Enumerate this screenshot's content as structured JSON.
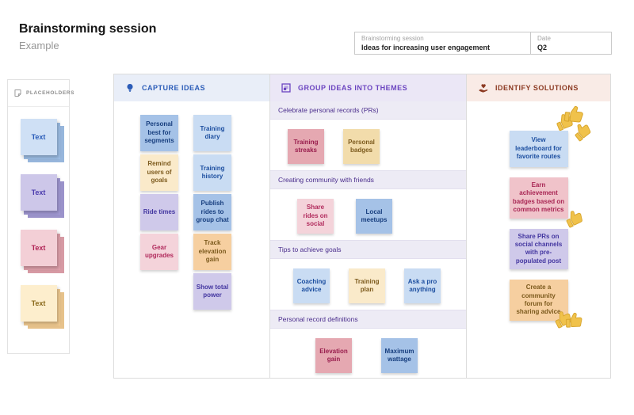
{
  "page": {
    "title": "Brainstorming session",
    "subtitle": "Example"
  },
  "info_box": {
    "fields": [
      {
        "label": "Brainstorming session",
        "value": "Ideas for increasing user engagement"
      },
      {
        "label": "Date",
        "value": "Q2"
      }
    ]
  },
  "placeholders_panel": {
    "title": "PLACEHOLDERS",
    "icon": "sticky-note-icon",
    "items": [
      {
        "label": "Text",
        "color": "ph_blue"
      },
      {
        "label": "Text",
        "color": "ph_purple"
      },
      {
        "label": "Text",
        "color": "ph_pink"
      },
      {
        "label": "Text",
        "color": "ph_yellow"
      }
    ]
  },
  "board": {
    "columns": [
      {
        "id": "capture-ideas",
        "title": "CAPTURE IDEAS",
        "icon": "lightbulb-icon",
        "header_bg": "#e9eef8",
        "header_text": "#2b5cb8",
        "groups": [
          [
            {
              "label": "Personal best for segments",
              "color": "blue_medium"
            },
            {
              "label": "Remind users of goals",
              "color": "cream"
            },
            {
              "label": "Ride times",
              "color": "purple"
            },
            {
              "label": "Gear upgrades",
              "color": "pink_light"
            }
          ],
          [
            {
              "label": "Training diary",
              "color": "blue_light"
            },
            {
              "label": "Training history",
              "color": "blue_light"
            },
            {
              "label": "Publish rides to group chat",
              "color": "blue_medium"
            },
            {
              "label": "Track elevation gain",
              "color": "orange"
            },
            {
              "label": "Show total power",
              "color": "purple"
            }
          ]
        ]
      },
      {
        "id": "group-ideas-into-themes",
        "title": "GROUP IDEAS INTO THEMES",
        "icon": "frame-icon",
        "header_bg": "#ebe7f6",
        "header_text": "#6b44c0",
        "sections": [
          {
            "title": "Celebrate personal records (PRs)",
            "stickies": [
              {
                "label": "Training streaks",
                "color": "pink_medium"
              },
              {
                "label": "Personal badges",
                "color": "tan"
              }
            ]
          },
          {
            "title": "Creating community with friends",
            "stickies": [
              {
                "label": "Share rides on social",
                "color": "pink_light"
              },
              {
                "label": "Local meetups",
                "color": "blue_medium"
              }
            ]
          },
          {
            "title": "Tips to achieve goals",
            "stickies": [
              {
                "label": "Coaching advice",
                "color": "blue_light"
              },
              {
                "label": "Training plan",
                "color": "cream"
              },
              {
                "label": "Ask a pro anything",
                "color": "blue_light"
              }
            ]
          },
          {
            "title": "Personal record definitions",
            "stickies": [
              {
                "label": "Elevation gain",
                "color": "pink_medium"
              },
              {
                "label": "Maximum wattage",
                "color": "blue_medium"
              }
            ]
          }
        ]
      },
      {
        "id": "identify-solutions",
        "title": "IDENTIFY SOLUTIONS",
        "icon": "hand-heart-icon",
        "header_bg": "#f9ebe6",
        "header_text": "#8c3a22",
        "stickies": [
          {
            "label": "View leaderboard for favorite routes",
            "color": "blue_light",
            "thumbs": 3,
            "thumbs_position": "top-right"
          },
          {
            "label": "Earn achievement badges based on common metrics",
            "color": "pink_rose",
            "thumbs": 1,
            "thumbs_position": "bottom-right"
          },
          {
            "label": "Share PRs on social channels with pre-populated post",
            "color": "purple",
            "thumbs": 0,
            "thumbs_position": "none"
          },
          {
            "label": "Create a community forum for sharing advice",
            "color": "orange",
            "thumbs": 2,
            "thumbs_position": "bottom-right"
          }
        ]
      }
    ]
  },
  "palette": {
    "blue_light": {
      "bg": "#c9dcf3",
      "text": "#1d4fa0"
    },
    "blue_medium": {
      "bg": "#a5c2e7",
      "text": "#173e7e"
    },
    "purple": {
      "bg": "#cfc9ea",
      "text": "#4336a0"
    },
    "pink_light": {
      "bg": "#f4d3da",
      "text": "#b12a5c"
    },
    "pink_medium": {
      "bg": "#e5a8b1",
      "text": "#981c4c"
    },
    "pink_rose": {
      "bg": "#f0c3ca",
      "text": "#a82553"
    },
    "cream": {
      "bg": "#faeaca",
      "text": "#7c5a1d"
    },
    "tan": {
      "bg": "#f2dcab",
      "text": "#7c5a1d"
    },
    "orange": {
      "bg": "#f6cfa0",
      "text": "#7c5a1d"
    },
    "ph_blue": {
      "bg": "#cfe0f5",
      "back": "#9fc0e8",
      "text": "#2a5cb8"
    },
    "ph_purple": {
      "bg": "#cdc7e9",
      "back": "#a39bd6",
      "text": "#4b3cad"
    },
    "ph_pink": {
      "bg": "#f3cfd6",
      "back": "#e2a2ad",
      "text": "#b02355"
    },
    "ph_yellow": {
      "bg": "#fdeecd",
      "back": "#f3cc92",
      "text": "#8a691c"
    },
    "thumb_fill": "#f0c24b",
    "thumb_stroke": "#d8a62e"
  }
}
